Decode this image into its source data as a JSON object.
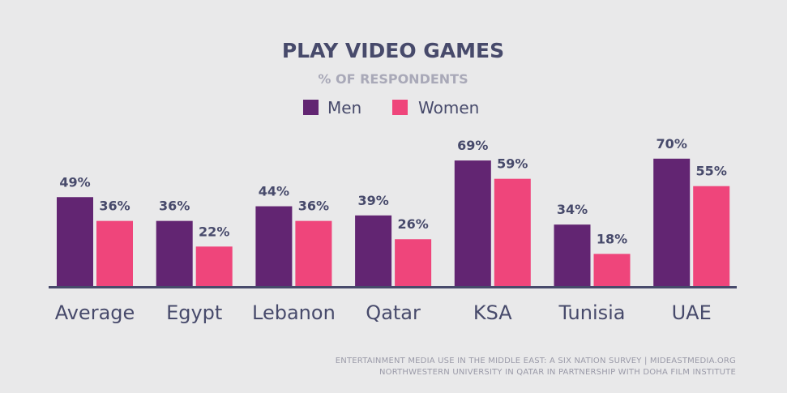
{
  "chart_data": {
    "type": "bar",
    "title": "PLAY VIDEO GAMES",
    "subtitle": "% OF RESPONDENTS",
    "categories": [
      "Average",
      "Egypt",
      "Lebanon",
      "Qatar",
      "KSA",
      "Tunisia",
      "UAE"
    ],
    "series": [
      {
        "name": "Men",
        "color": "#622572",
        "values": [
          49,
          36,
          44,
          39,
          69,
          34,
          70
        ],
        "labels": [
          "49%",
          "36%",
          "44%",
          "39%",
          "69%",
          "34%",
          "70%"
        ]
      },
      {
        "name": "Women",
        "color": "#ef457b",
        "values": [
          36,
          22,
          36,
          26,
          59,
          18,
          55
        ],
        "labels": [
          "36%",
          "22%",
          "36%",
          "26%",
          "59%",
          "18%",
          "55%"
        ]
      }
    ],
    "ylim": [
      0,
      100
    ],
    "grid": false,
    "legend_position": "top-center"
  },
  "source": {
    "line1": "ENTERTAINMENT MEDIA USE IN THE MIDDLE EAST: A SIX NATION SURVEY | MIDEASTMEDIA.ORG",
    "line2": "NORTHWESTERN UNIVERSITY IN QATAR IN PARTNERSHIP WITH DOHA FILM INSTITUTE"
  },
  "colors": {
    "title": "#474a6b",
    "subtitle": "#a9a9b8",
    "text": "#474a6b",
    "axis": "#474a6b",
    "source": "#9a9aa8"
  }
}
